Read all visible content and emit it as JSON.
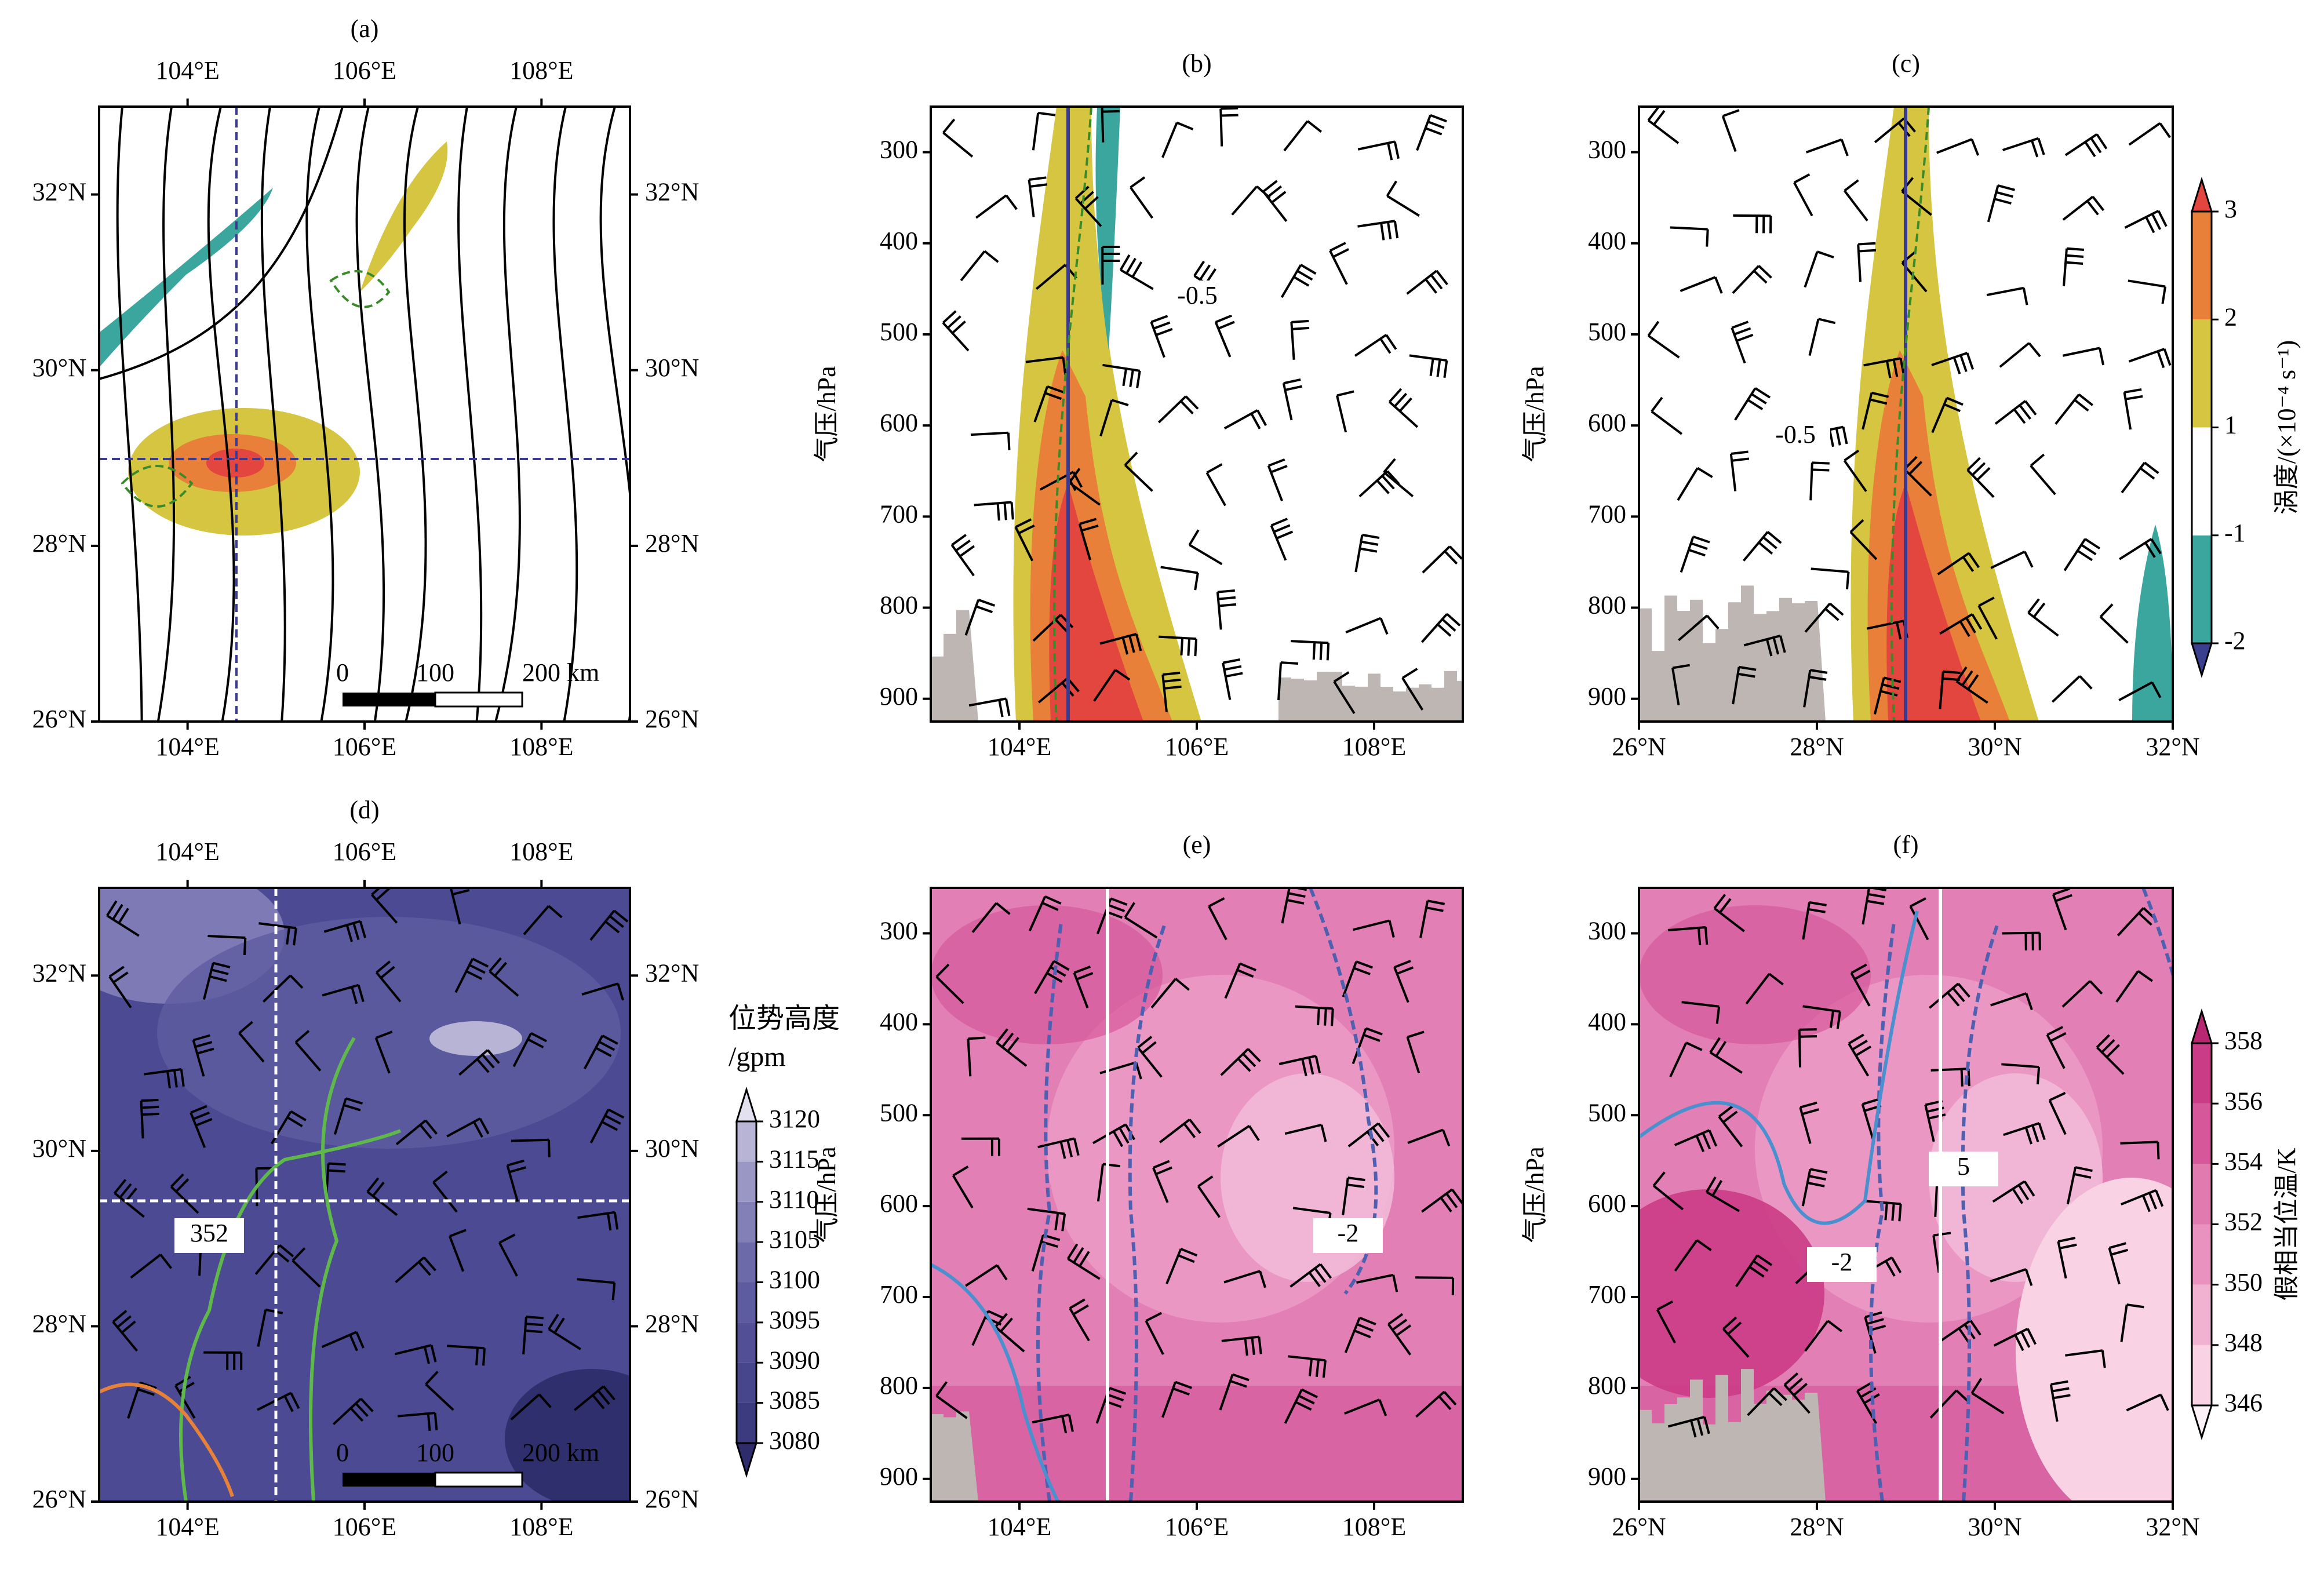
{
  "chart_data": [
    {
      "type": "map",
      "title": "(a)",
      "xlim": [
        103,
        109
      ],
      "ylim": [
        26,
        33
      ],
      "xticks": [
        {
          "value": 104,
          "label": "104°E"
        },
        {
          "value": 106,
          "label": "106°E"
        },
        {
          "value": 108,
          "label": "108°E"
        }
      ],
      "yticks": [
        {
          "value": 26,
          "label": "26°N"
        },
        {
          "value": 28,
          "label": "28°N"
        },
        {
          "value": 30,
          "label": "30°N"
        },
        {
          "value": 32,
          "label": "32°N"
        }
      ],
      "scale_labels": [
        "0",
        "100",
        "200 km"
      ]
    },
    {
      "type": "section",
      "title": "(b)",
      "ylabel": "气压/hPa",
      "xlim": [
        103,
        109
      ],
      "ylim": [
        925,
        250
      ],
      "xticks": [
        {
          "value": 104,
          "label": "104°E"
        },
        {
          "value": 106,
          "label": "106°E"
        },
        {
          "value": 108,
          "label": "108°E"
        }
      ],
      "yticks": [
        300,
        400,
        500,
        600,
        700,
        800,
        900
      ],
      "contour_labels": [
        "-0.5"
      ]
    },
    {
      "type": "section",
      "title": "(c)",
      "ylabel": "气压/hPa",
      "xlim": [
        26,
        32
      ],
      "ylim": [
        925,
        250
      ],
      "xticks": [
        {
          "value": 26,
          "label": "26°N"
        },
        {
          "value": 28,
          "label": "28°N"
        },
        {
          "value": 30,
          "label": "30°N"
        },
        {
          "value": 32,
          "label": "32°N"
        }
      ],
      "yticks": [
        300,
        400,
        500,
        600,
        700,
        800,
        900
      ],
      "contour_labels": [
        "-0.5"
      ],
      "colorbar": {
        "label": "涡度/(×10⁻⁴ s⁻¹)",
        "ticks": [
          -2,
          -1,
          1,
          2,
          3
        ],
        "colors": [
          "#3b3f8f",
          "#3aa69e",
          "#ffffff",
          "#d5c540",
          "#e8803a",
          "#e2463e"
        ]
      }
    },
    {
      "type": "map",
      "title": "(d)",
      "xlim": [
        103,
        109
      ],
      "ylim": [
        26,
        33
      ],
      "xticks": [
        {
          "value": 104,
          "label": "104°E"
        },
        {
          "value": 106,
          "label": "106°E"
        },
        {
          "value": 108,
          "label": "108°E"
        }
      ],
      "yticks": [
        {
          "value": 26,
          "label": "26°N"
        },
        {
          "value": 28,
          "label": "28°N"
        },
        {
          "value": 30,
          "label": "30°N"
        },
        {
          "value": 32,
          "label": "32°N"
        }
      ],
      "scale_labels": [
        "0",
        "100",
        "200 km"
      ],
      "contour_labels": [
        "352"
      ],
      "colorbar": {
        "label": "位势高度",
        "unit": "/gpm",
        "ticks": [
          3080,
          3085,
          3090,
          3095,
          3100,
          3105,
          3110,
          3115,
          3120
        ],
        "colors": [
          "#2e2c6a",
          "#3c3b80",
          "#47468c",
          "#524f96",
          "#5e5ca0",
          "#6d6aa9",
          "#8280b6",
          "#9a97c4",
          "#b8b4d6",
          "#e3e0ef"
        ]
      }
    },
    {
      "type": "section",
      "title": "(e)",
      "ylabel": "气压/hPa",
      "xlim": [
        103,
        109
      ],
      "ylim": [
        925,
        250
      ],
      "xticks": [
        {
          "value": 104,
          "label": "104°E"
        },
        {
          "value": 106,
          "label": "106°E"
        },
        {
          "value": 108,
          "label": "108°E"
        }
      ],
      "yticks": [
        300,
        400,
        500,
        600,
        700,
        800,
        900
      ],
      "contour_labels": [
        "-2"
      ]
    },
    {
      "type": "section",
      "title": "(f)",
      "ylabel": "气压/hPa",
      "xlim": [
        26,
        32
      ],
      "ylim": [
        925,
        250
      ],
      "xticks": [
        {
          "value": 26,
          "label": "26°N"
        },
        {
          "value": 28,
          "label": "28°N"
        },
        {
          "value": 30,
          "label": "30°N"
        },
        {
          "value": 32,
          "label": "32°N"
        }
      ],
      "yticks": [
        300,
        400,
        500,
        600,
        700,
        800,
        900
      ],
      "contour_labels": [
        "5",
        "-2"
      ],
      "colorbar": {
        "label": "假相当位温/K",
        "ticks": [
          346,
          348,
          350,
          352,
          354,
          356,
          358
        ],
        "colors": [
          "#fdf2f7",
          "#f9d3e4",
          "#f1b1d0",
          "#e992bf",
          "#e07aaf",
          "#d6589b",
          "#cb3c86",
          "#b82872"
        ]
      }
    }
  ]
}
